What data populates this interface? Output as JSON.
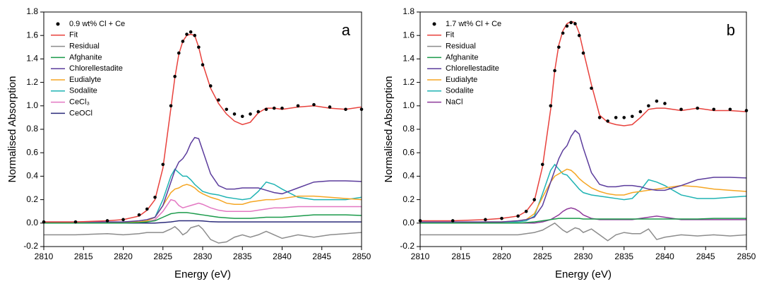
{
  "chart_data": [
    {
      "type": "line",
      "panel_label": "a",
      "xlabel": "Energy (eV)",
      "ylabel": "Normalised Absorption",
      "xlim": [
        2810,
        2850
      ],
      "xticks": [
        2810,
        2815,
        2820,
        2825,
        2830,
        2835,
        2840,
        2845,
        2850
      ],
      "ylim": [
        -0.2,
        1.8
      ],
      "yticks": [
        -0.2,
        {
          "value": 0,
          "label": "0.0"
        },
        0.2,
        0.4,
        0.6,
        0.8,
        {
          "value": 1,
          "label": "1.0"
        },
        1.2,
        1.4,
        1.6,
        1.8
      ],
      "legend": "upper left",
      "x": [
        2810,
        2814,
        2818,
        2820,
        2822,
        2823,
        2824,
        2825,
        2826,
        2826.5,
        2827,
        2827.5,
        2828,
        2828.5,
        2829,
        2829.5,
        2830,
        2831,
        2832,
        2833,
        2834,
        2835,
        2836,
        2837,
        2838,
        2839,
        2840,
        2842,
        2844,
        2846,
        2848,
        2850
      ],
      "series": [
        {
          "name": "0.9 wt% Cl + Ce",
          "color": "#000000",
          "marker": "circle",
          "values": [
            0.01,
            0.01,
            0.02,
            0.03,
            0.07,
            0.12,
            0.22,
            0.5,
            1.0,
            1.25,
            1.45,
            1.55,
            1.61,
            1.63,
            1.6,
            1.5,
            1.35,
            1.17,
            1.05,
            0.97,
            0.93,
            0.91,
            0.93,
            0.95,
            0.97,
            0.98,
            0.98,
            1.0,
            1.01,
            0.99,
            0.97,
            0.97
          ]
        },
        {
          "name": "Fit",
          "color": "#e8413c",
          "values": [
            0.01,
            0.01,
            0.02,
            0.03,
            0.06,
            0.11,
            0.2,
            0.47,
            0.98,
            1.24,
            1.44,
            1.55,
            1.6,
            1.61,
            1.6,
            1.5,
            1.36,
            1.15,
            1.02,
            0.93,
            0.87,
            0.84,
            0.86,
            0.94,
            0.98,
            0.98,
            0.97,
            0.99,
            1.0,
            0.98,
            0.97,
            0.99
          ]
        },
        {
          "name": "Residual",
          "color": "#8c8c8c",
          "values": [
            -0.1,
            -0.1,
            -0.09,
            -0.1,
            -0.09,
            -0.08,
            -0.08,
            -0.08,
            -0.05,
            -0.03,
            -0.06,
            -0.1,
            -0.08,
            -0.04,
            -0.03,
            -0.02,
            -0.05,
            -0.14,
            -0.17,
            -0.16,
            -0.12,
            -0.1,
            -0.12,
            -0.1,
            -0.07,
            -0.1,
            -0.13,
            -0.1,
            -0.12,
            -0.1,
            -0.09,
            -0.08
          ]
        },
        {
          "name": "Afghanite",
          "color": "#1a9a4a",
          "values": [
            0,
            0,
            0,
            0,
            0.005,
            0.01,
            0.02,
            0.05,
            0.08,
            0.085,
            0.09,
            0.09,
            0.09,
            0.085,
            0.08,
            0.075,
            0.07,
            0.06,
            0.05,
            0.045,
            0.04,
            0.04,
            0.04,
            0.045,
            0.05,
            0.05,
            0.05,
            0.06,
            0.07,
            0.07,
            0.07,
            0.065
          ]
        },
        {
          "name": "Chlorellestadite",
          "color": "#5b3c9c",
          "values": [
            0.01,
            0.01,
            0.01,
            0.01,
            0.02,
            0.03,
            0.05,
            0.15,
            0.35,
            0.45,
            0.52,
            0.55,
            0.6,
            0.68,
            0.73,
            0.72,
            0.62,
            0.42,
            0.32,
            0.29,
            0.29,
            0.3,
            0.3,
            0.3,
            0.28,
            0.26,
            0.25,
            0.3,
            0.35,
            0.36,
            0.36,
            0.355
          ]
        },
        {
          "name": "Eudialyte",
          "color": "#f5a623",
          "values": [
            0,
            0,
            0,
            0.01,
            0.01,
            0.02,
            0.05,
            0.15,
            0.26,
            0.29,
            0.3,
            0.32,
            0.33,
            0.32,
            0.3,
            0.27,
            0.25,
            0.22,
            0.2,
            0.17,
            0.16,
            0.16,
            0.18,
            0.19,
            0.2,
            0.2,
            0.21,
            0.23,
            0.23,
            0.22,
            0.21,
            0.2
          ]
        },
        {
          "name": "Sodalite",
          "color": "#1fb3b3",
          "values": [
            0,
            0,
            0,
            0.01,
            0.01,
            0.02,
            0.05,
            0.2,
            0.4,
            0.46,
            0.43,
            0.4,
            0.4,
            0.37,
            0.33,
            0.3,
            0.27,
            0.25,
            0.24,
            0.22,
            0.21,
            0.2,
            0.21,
            0.27,
            0.35,
            0.33,
            0.29,
            0.22,
            0.2,
            0.2,
            0.2,
            0.22
          ]
        },
        {
          "name": "CeCl₃",
          "color": "#e377c2",
          "values": [
            0,
            0,
            0,
            0,
            0.01,
            0.01,
            0.03,
            0.1,
            0.2,
            0.19,
            0.15,
            0.13,
            0.14,
            0.15,
            0.16,
            0.17,
            0.16,
            0.13,
            0.11,
            0.1,
            0.1,
            0.1,
            0.1,
            0.11,
            0.12,
            0.13,
            0.13,
            0.14,
            0.14,
            0.14,
            0.14,
            0.14
          ]
        },
        {
          "name": "CeOCl",
          "color": "#2b2b7a",
          "values": [
            0,
            0,
            0,
            0,
            0,
            0,
            0,
            0.005,
            0.01,
            0.015,
            0.02,
            0.02,
            0.02,
            0.02,
            0.02,
            0.02,
            0.018,
            0.012,
            0.01,
            0.01,
            0.01,
            0.01,
            0.01,
            0.01,
            0.01,
            0.01,
            0.01,
            0.01,
            0.01,
            0.01,
            0.01,
            0.01
          ]
        }
      ]
    },
    {
      "type": "line",
      "panel_label": "b",
      "xlabel": "Energy (eV)",
      "ylabel": "Normalised Absorption",
      "xlim": [
        2810,
        2850
      ],
      "xticks": [
        2810,
        2815,
        2820,
        2825,
        2830,
        2835,
        2840,
        2845,
        2850
      ],
      "ylim": [
        -0.2,
        1.8
      ],
      "yticks": [
        -0.2,
        {
          "value": 0,
          "label": "0.0"
        },
        0.2,
        0.4,
        0.6,
        0.8,
        {
          "value": 1,
          "label": "1.0"
        },
        1.2,
        1.4,
        1.6,
        1.8
      ],
      "legend": "upper left",
      "x": [
        2810,
        2814,
        2818,
        2820,
        2822,
        2823,
        2824,
        2825,
        2826,
        2826.5,
        2827,
        2827.5,
        2828,
        2828.5,
        2829,
        2829.5,
        2830,
        2831,
        2832,
        2833,
        2834,
        2835,
        2836,
        2837,
        2838,
        2839,
        2840,
        2842,
        2844,
        2846,
        2848,
        2850
      ],
      "series": [
        {
          "name": "1.7 wt% Cl + Ce",
          "color": "#000000",
          "marker": "circle",
          "values": [
            0.02,
            0.02,
            0.03,
            0.04,
            0.06,
            0.1,
            0.2,
            0.5,
            1.0,
            1.3,
            1.5,
            1.62,
            1.68,
            1.71,
            1.7,
            1.6,
            1.45,
            1.15,
            0.9,
            0.87,
            0.9,
            0.9,
            0.91,
            0.95,
            1.0,
            1.04,
            1.02,
            0.97,
            0.98,
            0.97,
            0.97,
            0.96
          ]
        },
        {
          "name": "Fit",
          "color": "#e8413c",
          "values": [
            0.02,
            0.02,
            0.03,
            0.04,
            0.06,
            0.1,
            0.19,
            0.48,
            0.97,
            1.3,
            1.52,
            1.64,
            1.7,
            1.72,
            1.71,
            1.62,
            1.47,
            1.18,
            0.92,
            0.86,
            0.84,
            0.83,
            0.84,
            0.9,
            0.97,
            0.98,
            0.98,
            0.96,
            0.98,
            0.96,
            0.96,
            0.95
          ]
        },
        {
          "name": "Residual",
          "color": "#8c8c8c",
          "values": [
            -0.1,
            -0.1,
            -0.1,
            -0.1,
            -0.1,
            -0.09,
            -0.08,
            -0.06,
            -0.02,
            0,
            -0.03,
            -0.06,
            -0.08,
            -0.06,
            -0.04,
            -0.05,
            -0.08,
            -0.05,
            -0.1,
            -0.15,
            -0.1,
            -0.08,
            -0.09,
            -0.09,
            -0.05,
            -0.14,
            -0.12,
            -0.1,
            -0.11,
            -0.1,
            -0.11,
            -0.1
          ]
        },
        {
          "name": "Afghanite",
          "color": "#1a9a4a",
          "values": [
            0,
            0,
            0,
            0,
            0,
            0.005,
            0.01,
            0.02,
            0.03,
            0.035,
            0.04,
            0.04,
            0.04,
            0.04,
            0.04,
            0.04,
            0.035,
            0.035,
            0.035,
            0.035,
            0.035,
            0.035,
            0.035,
            0.035,
            0.035,
            0.035,
            0.035,
            0.035,
            0.035,
            0.04,
            0.04,
            0.04
          ]
        },
        {
          "name": "Chlorellestadite",
          "color": "#5b3c9c",
          "values": [
            0.01,
            0.01,
            0.01,
            0.01,
            0.02,
            0.03,
            0.05,
            0.15,
            0.35,
            0.45,
            0.55,
            0.62,
            0.66,
            0.74,
            0.79,
            0.76,
            0.64,
            0.43,
            0.33,
            0.31,
            0.31,
            0.32,
            0.32,
            0.31,
            0.29,
            0.28,
            0.28,
            0.32,
            0.37,
            0.39,
            0.39,
            0.385
          ]
        },
        {
          "name": "Eudialyte",
          "color": "#f5a623",
          "values": [
            0,
            0,
            0.01,
            0.01,
            0.02,
            0.03,
            0.08,
            0.22,
            0.35,
            0.4,
            0.42,
            0.44,
            0.46,
            0.45,
            0.42,
            0.38,
            0.35,
            0.3,
            0.27,
            0.25,
            0.24,
            0.24,
            0.26,
            0.27,
            0.28,
            0.29,
            0.3,
            0.32,
            0.31,
            0.29,
            0.28,
            0.27
          ]
        },
        {
          "name": "Sodalite",
          "color": "#1fb3b3",
          "values": [
            0,
            0,
            0,
            0.01,
            0.01,
            0.02,
            0.06,
            0.25,
            0.45,
            0.5,
            0.46,
            0.42,
            0.41,
            0.37,
            0.33,
            0.29,
            0.26,
            0.24,
            0.23,
            0.22,
            0.21,
            0.2,
            0.21,
            0.28,
            0.37,
            0.35,
            0.32,
            0.24,
            0.21,
            0.21,
            0.22,
            0.23
          ]
        },
        {
          "name": "NaCl",
          "color": "#8e3a9a",
          "values": [
            0,
            0,
            0,
            0,
            0,
            0,
            0,
            0.01,
            0.03,
            0.05,
            0.07,
            0.1,
            0.12,
            0.13,
            0.12,
            0.1,
            0.07,
            0.04,
            0.03,
            0.03,
            0.03,
            0.03,
            0.03,
            0.04,
            0.05,
            0.06,
            0.05,
            0.03,
            0.03,
            0.03,
            0.03,
            0.03
          ]
        }
      ]
    }
  ]
}
